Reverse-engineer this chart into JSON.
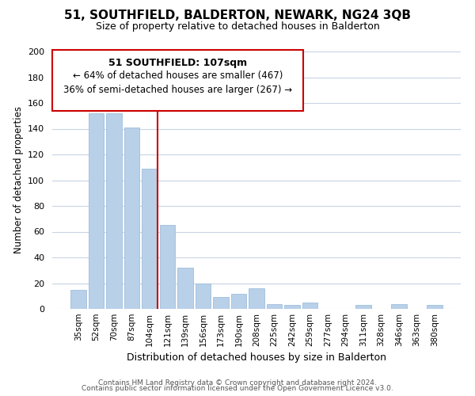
{
  "title": "51, SOUTHFIELD, BALDERTON, NEWARK, NG24 3QB",
  "subtitle": "Size of property relative to detached houses in Balderton",
  "xlabel": "Distribution of detached houses by size in Balderton",
  "ylabel": "Number of detached properties",
  "bar_color": "#b8d0e8",
  "bar_edge_color": "#a0bedc",
  "highlight_line_color": "#cc0000",
  "categories": [
    "35sqm",
    "52sqm",
    "70sqm",
    "87sqm",
    "104sqm",
    "121sqm",
    "139sqm",
    "156sqm",
    "173sqm",
    "190sqm",
    "208sqm",
    "225sqm",
    "242sqm",
    "259sqm",
    "277sqm",
    "294sqm",
    "311sqm",
    "328sqm",
    "346sqm",
    "363sqm",
    "380sqm"
  ],
  "values": [
    15,
    152,
    152,
    141,
    109,
    65,
    32,
    20,
    9,
    12,
    16,
    4,
    3,
    5,
    0,
    0,
    3,
    0,
    4,
    0,
    3
  ],
  "highlight_index": 4,
  "annotation_title": "51 SOUTHFIELD: 107sqm",
  "annotation_line1": "← 64% of detached houses are smaller (467)",
  "annotation_line2": "36% of semi-detached houses are larger (267) →",
  "ylim": [
    0,
    200
  ],
  "yticks": [
    0,
    20,
    40,
    60,
    80,
    100,
    120,
    140,
    160,
    180,
    200
  ],
  "footer_line1": "Contains HM Land Registry data © Crown copyright and database right 2024.",
  "footer_line2": "Contains public sector information licensed under the Open Government Licence v3.0.",
  "background_color": "#ffffff",
  "grid_color": "#c8d4e4"
}
